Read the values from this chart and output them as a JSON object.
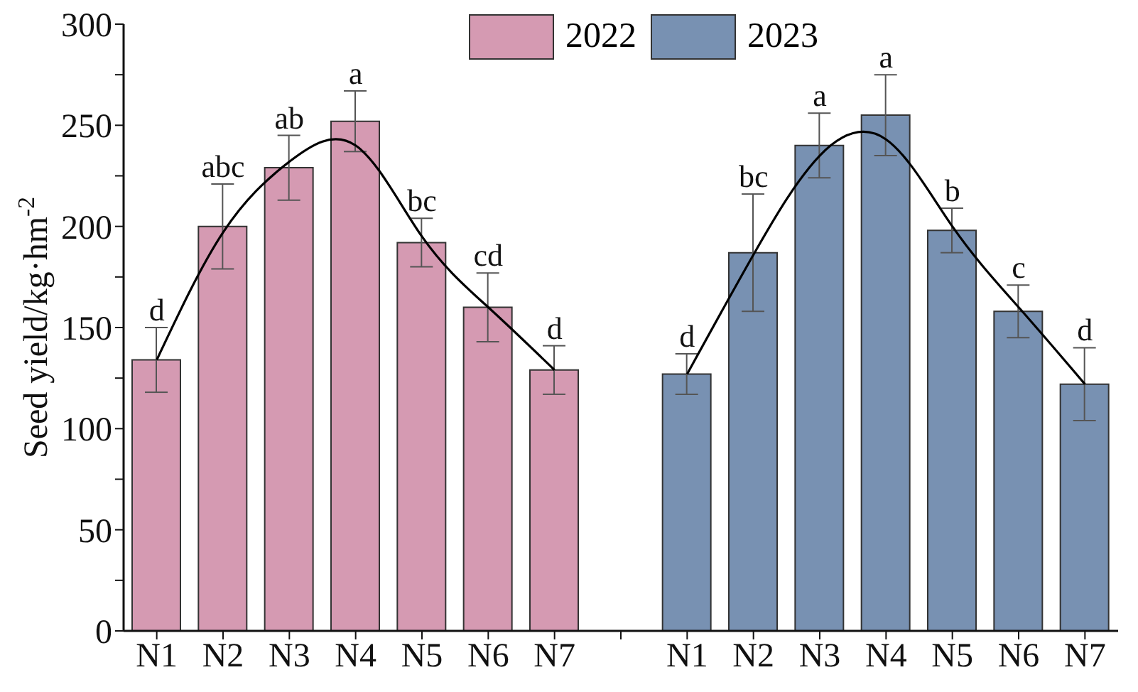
{
  "chart_data": {
    "type": "bar",
    "ylabel": "Seed yield/kg·hm$^{-2}$",
    "categories": [
      "N1",
      "N2",
      "N3",
      "N4",
      "N5",
      "N6",
      "N7",
      null,
      "N1",
      "N2",
      "N3",
      "N4",
      "N5",
      "N6",
      "N7"
    ],
    "series": [
      {
        "name": "2022",
        "color": "#d59ab2",
        "values": [
          134,
          200,
          229,
          252,
          192,
          160,
          129,
          null,
          null,
          null,
          null,
          null,
          null,
          null,
          null
        ],
        "errors": [
          16,
          21,
          16,
          15,
          12,
          17,
          12,
          null,
          null,
          null,
          null,
          null,
          null,
          null,
          null
        ],
        "value_labels": [
          "d",
          "abc",
          "ab",
          "a",
          "bc",
          "cd",
          "d",
          null,
          null,
          null,
          null,
          null,
          null,
          null,
          null
        ]
      },
      {
        "name": "2023",
        "color": "#7891b2",
        "values": [
          null,
          null,
          null,
          null,
          null,
          null,
          null,
          null,
          127,
          187,
          240,
          255,
          198,
          158,
          122
        ],
        "errors": [
          null,
          null,
          null,
          null,
          null,
          null,
          null,
          null,
          10,
          29,
          16,
          20,
          11,
          13,
          18
        ],
        "value_labels": [
          null,
          null,
          null,
          null,
          null,
          null,
          null,
          null,
          "d",
          "bc",
          "a",
          "a",
          "b",
          "c",
          "d"
        ]
      },
      {
        "type": "line",
        "color": "#000000",
        "values": [
          134,
          197,
          232,
          240,
          195,
          160,
          129,
          null,
          null,
          null,
          null,
          null,
          null,
          null,
          null
        ]
      },
      {
        "type": "line",
        "color": "#000000",
        "values": [
          null,
          null,
          null,
          null,
          null,
          null,
          null,
          null,
          127,
          186,
          235,
          243,
          200,
          160,
          122
        ]
      }
    ],
    "ylim": [
      0,
      300
    ],
    "yticks": [
      0,
      {
        "value": 25,
        "label": null
      },
      50,
      {
        "value": 75,
        "label": null
      },
      100,
      {
        "value": 125,
        "label": null
      },
      150,
      {
        "value": 175,
        "label": null
      },
      200,
      {
        "value": 225,
        "label": null
      },
      250,
      {
        "value": 275,
        "label": null
      },
      300
    ],
    "grid": false,
    "legend": "top",
    "marker": "none"
  }
}
